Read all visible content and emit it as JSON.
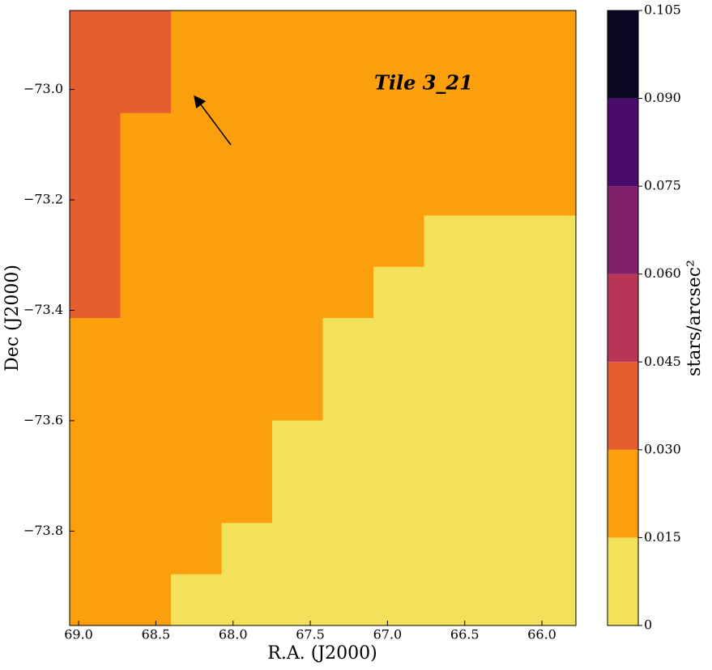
{
  "chart_data": {
    "type": "contour",
    "x_label": "R.A. (J2000)",
    "y_label": "Dec (J2000)",
    "colorbar_label": "stars/arcsec²",
    "annotation": "Tile 3_21",
    "xlim": [
      69.058,
      65.78
    ],
    "ylim": [
      -73.971,
      -72.857
    ],
    "xticks": [
      {
        "value": 69,
        "label": "69.0"
      },
      68.5,
      {
        "value": 68,
        "label": "68.0"
      },
      67.5,
      {
        "value": 67,
        "label": "67.0"
      },
      66.5,
      {
        "value": 66,
        "label": "66.0"
      }
    ],
    "yticks": [
      {
        "value": -73.0,
        "label": "−73.0"
      },
      {
        "value": -73.2,
        "label": "−73.2"
      },
      {
        "value": -73.4,
        "label": "−73.4"
      },
      {
        "value": -73.6,
        "label": "−73.6"
      },
      {
        "value": -73.8,
        "label": "−73.8"
      }
    ],
    "levels": [
      0,
      0.015,
      {
        "value": 0.03,
        "label": "0.030"
      },
      0.045,
      {
        "value": 0.06,
        "label": "0.060"
      },
      0.075,
      {
        "value": 0.09,
        "label": "0.090"
      },
      0.105
    ],
    "colors": [
      "#f3e15b",
      "#fb9f0c",
      "#e65d2f",
      "#b93556",
      "#7f1f6c",
      "#4a0c6b",
      "#0c0826"
    ],
    "z": [
      [
        0.035,
        0.03,
        0.025,
        0.02,
        0.02,
        0.02,
        0.02,
        0.02,
        0.02,
        0.02
      ],
      [
        0.035,
        0.03,
        0.025,
        0.02,
        0.02,
        0.02,
        0.02,
        0.02,
        0.02,
        0.02
      ],
      [
        0.03,
        0.025,
        0.02,
        0.02,
        0.02,
        0.02,
        0.02,
        0.02,
        0.015,
        0.015
      ],
      [
        0.03,
        0.025,
        0.02,
        0.02,
        0.02,
        0.02,
        0.02,
        0.015,
        0.015,
        0.015
      ],
      [
        0.03,
        0.02,
        0.02,
        0.02,
        0.02,
        0.02,
        0.015,
        0.012,
        0.012,
        0.012
      ],
      [
        0.03,
        0.02,
        0.02,
        0.02,
        0.02,
        0.018,
        0.012,
        0.012,
        0.012,
        0.012
      ],
      [
        0.025,
        0.02,
        0.02,
        0.02,
        0.018,
        0.012,
        0.012,
        0.01,
        0.012,
        0.012
      ],
      [
        0.025,
        0.02,
        0.02,
        0.02,
        0.015,
        0.012,
        0.01,
        0.01,
        0.01,
        0.012
      ],
      [
        0.025,
        0.02,
        0.02,
        0.018,
        0.012,
        0.01,
        0.01,
        0.01,
        0.01,
        0.01
      ],
      [
        0.02,
        0.02,
        0.02,
        0.015,
        0.012,
        0.01,
        0.01,
        0.01,
        0.01,
        0.01
      ],
      [
        0.02,
        0.02,
        0.018,
        0.012,
        0.01,
        0.01,
        0.01,
        0.01,
        0.01,
        0.01
      ],
      [
        0.018,
        0.015,
        0.012,
        0.01,
        0.01,
        0.01,
        0.01,
        0.01,
        0.01,
        0.008
      ]
    ]
  }
}
